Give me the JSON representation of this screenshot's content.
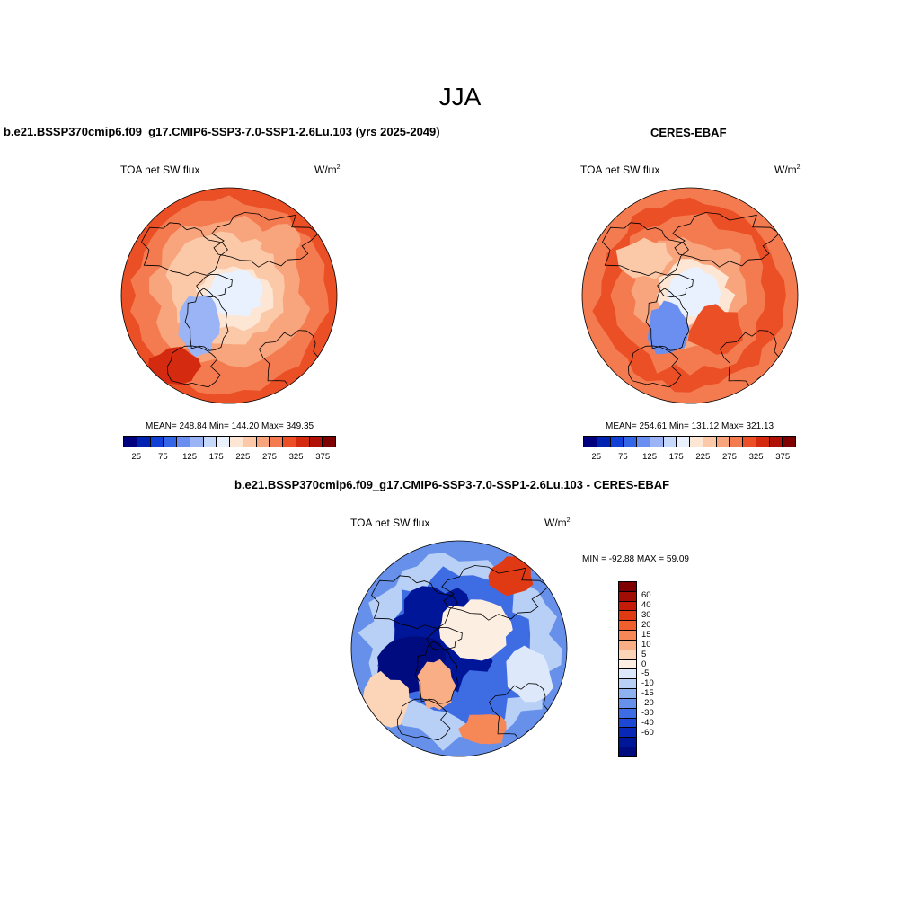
{
  "figure": {
    "season": "JJA"
  },
  "panels": [
    {
      "title": "b.e21.BSSP370cmip6.f09_g17.CMIP6-SSP3-7.0-SSP1-2.6Lu.103 (yrs 2025-2049)",
      "variable": "TOA net SW flux",
      "units": "W/m",
      "units_sup": "2",
      "stats": "MEAN= 248.84  Min= 144.20  Max= 349.35"
    },
    {
      "title": "CERES-EBAF",
      "variable": "TOA net SW flux",
      "units": "W/m",
      "units_sup": "2",
      "stats": "MEAN= 254.61  Min= 131.12  Max= 321.13"
    },
    {
      "title": "b.e21.BSSP370cmip6.f09_g17.CMIP6-SSP3-7.0-SSP1-2.6Lu.103 - CERES-EBAF",
      "variable": "TOA net SW flux",
      "units": "W/m",
      "units_sup": "2",
      "stats": "MIN = -92.88 MAX =  59.09"
    }
  ],
  "colorbars": {
    "field": {
      "colors": [
        "#00007f",
        "#0022b0",
        "#1140d6",
        "#3366e6",
        "#6b8ff0",
        "#9ab4f5",
        "#c6d9fa",
        "#e8f1fd",
        "#fde6d4",
        "#fbc8a8",
        "#f8a47c",
        "#f47b50",
        "#eb4f26",
        "#d42a0f",
        "#b01208",
        "#7f0000"
      ],
      "tick_labels": [
        "25",
        "75",
        "125",
        "175",
        "225",
        "275",
        "325",
        "375"
      ]
    },
    "diff": {
      "colors": [
        "#7f0000",
        "#a00e05",
        "#c41c08",
        "#e03a14",
        "#f0602f",
        "#f68858",
        "#f9ae85",
        "#fcd4b8",
        "#fdeee2",
        "#dde9fb",
        "#b8cff6",
        "#8eb1f0",
        "#6690ea",
        "#3e6ce2",
        "#1c48d4",
        "#0a28b8",
        "#001699",
        "#000b80"
      ],
      "tick_labels": [
        "60",
        "40",
        "30",
        "20",
        "15",
        "10",
        "5",
        "0",
        "-5",
        "-10",
        "-15",
        "-20",
        "-30",
        "-40",
        "-60"
      ]
    }
  }
}
